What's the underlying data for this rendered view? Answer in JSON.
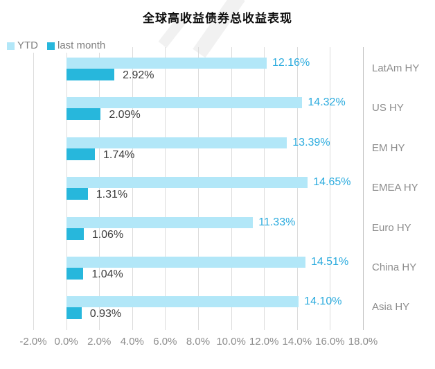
{
  "title": "全球高收益债券总收益表现",
  "colors": {
    "background": "#ffffff",
    "gridline": "#dcdcdc",
    "axis_edge_line": "#bfbfbf",
    "axis_text": "#8c8c8c",
    "legend_text": "#7f7f7f",
    "title_text": "#0d0d0d"
  },
  "chart_data": {
    "type": "bar",
    "orientation": "horizontal",
    "title": "全球高收益债券总收益表现",
    "categories": [
      "LatAm HY",
      "US HY",
      "EM HY",
      "EMEA HY",
      "Euro HY",
      "China HY",
      "Asia HY"
    ],
    "series": [
      {
        "name": "YTD",
        "color": "#b2e7f8",
        "label_color": "#2babde",
        "values": [
          12.16,
          14.32,
          13.39,
          14.65,
          11.33,
          14.51,
          14.1
        ],
        "labels": [
          "12.16%",
          "14.32%",
          "13.39%",
          "14.65%",
          "11.33%",
          "14.51%",
          "14.10%"
        ]
      },
      {
        "name": "last month",
        "color": "#27b7dc",
        "label_color": "#3c3c3c",
        "values": [
          2.92,
          2.09,
          1.74,
          1.31,
          1.06,
          1.04,
          0.93
        ],
        "labels": [
          "2.92%",
          "2.09%",
          "1.74%",
          "1.31%",
          "1.06%",
          "1.04%",
          "0.93%"
        ]
      }
    ],
    "x_ticks": [
      "-2.0%",
      "0.0%",
      "2.0%",
      "4.0%",
      "6.0%",
      "8.0%",
      "10.0%",
      "12.0%",
      "14.0%",
      "16.0%",
      "18.0%"
    ],
    "xlim": [
      -2,
      18
    ],
    "grid": true,
    "legend_position": "top-left"
  }
}
